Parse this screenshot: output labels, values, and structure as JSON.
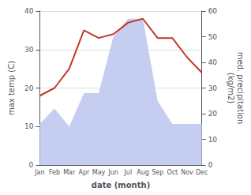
{
  "chart_data": {
    "type": "line",
    "xlabel": "date (month)",
    "ylabel": "max temp (C)",
    "y2label": "med. precipitation\n(kg/m2)",
    "categories": [
      "Jan",
      "Feb",
      "Mar",
      "Apr",
      "May",
      "Jun",
      "Jul",
      "Aug",
      "Sep",
      "Oct",
      "Nov",
      "Dec"
    ],
    "series": [
      {
        "type": "area",
        "axis": "y2",
        "color": "#c5cef0",
        "values": [
          16,
          22,
          15,
          28,
          28,
          50,
          57,
          57,
          25,
          16,
          16,
          16
        ]
      },
      {
        "type": "line",
        "color": "#c0392b",
        "values": [
          18,
          20,
          25,
          35,
          33,
          34,
          37,
          38,
          33,
          33,
          28,
          24
        ]
      }
    ],
    "ylim": [
      0,
      40
    ],
    "yticks": [
      0,
      10,
      20,
      30,
      40
    ],
    "y2lim": [
      0,
      60
    ],
    "y2ticks": [
      0,
      10,
      20,
      30,
      40,
      50,
      60
    ],
    "grid": true
  }
}
